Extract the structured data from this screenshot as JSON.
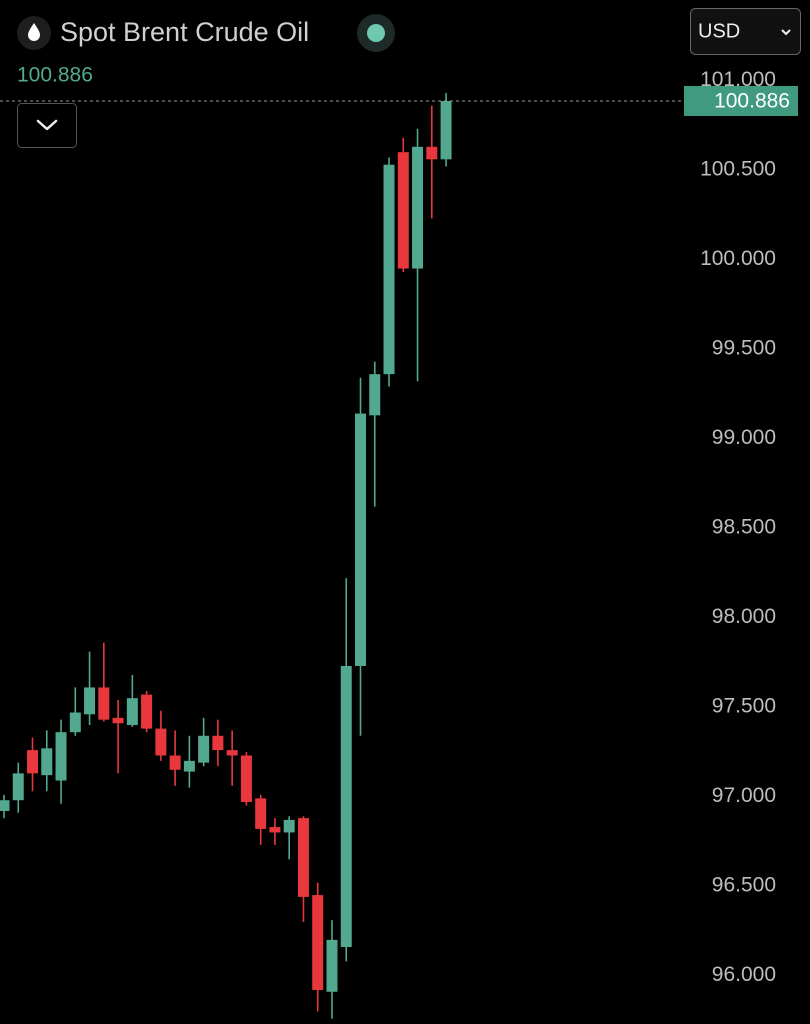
{
  "chart_data": {
    "type": "candlestick",
    "title": "Spot Brent Crude Oil",
    "currency": "USD",
    "last_price": {
      "value": 100.886,
      "label": "100.886"
    },
    "up_color": "#52a98f",
    "down_color": "#e8383d",
    "open": [
      96.92,
      96.98,
      97.26,
      97.12,
      97.09,
      97.36,
      97.46,
      97.61,
      97.44,
      97.4,
      97.57,
      97.38,
      97.23,
      97.14,
      97.19,
      97.34,
      97.26,
      97.23,
      96.99,
      96.83,
      96.8,
      96.88,
      96.45,
      95.91,
      96.16,
      97.73,
      99.13,
      99.36,
      100.6,
      99.95,
      100.63,
      100.56
    ],
    "high": [
      97.01,
      97.19,
      97.33,
      97.37,
      97.43,
      97.61,
      97.81,
      97.86,
      97.54,
      97.68,
      97.59,
      97.48,
      97.37,
      97.34,
      97.44,
      97.43,
      97.37,
      97.25,
      97.01,
      96.88,
      96.89,
      96.89,
      96.52,
      96.31,
      98.22,
      99.34,
      99.43,
      100.57,
      100.68,
      100.73,
      100.86,
      100.93
    ],
    "low": [
      96.88,
      96.91,
      97.03,
      97.03,
      96.96,
      97.34,
      97.4,
      97.42,
      97.13,
      97.39,
      97.36,
      97.2,
      97.06,
      97.05,
      97.17,
      97.17,
      97.06,
      96.95,
      96.73,
      96.73,
      96.65,
      96.3,
      95.8,
      95.76,
      96.08,
      97.34,
      98.62,
      99.29,
      99.93,
      99.32,
      100.23,
      100.52
    ],
    "close": [
      96.98,
      97.13,
      97.13,
      97.27,
      97.36,
      97.47,
      97.61,
      97.43,
      97.41,
      97.55,
      97.38,
      97.23,
      97.15,
      97.2,
      97.34,
      97.26,
      97.23,
      96.97,
      96.82,
      96.8,
      96.87,
      96.44,
      95.92,
      96.2,
      97.73,
      99.14,
      99.36,
      100.53,
      99.95,
      100.63,
      100.56,
      100.886
    ],
    "ylim": [
      95.73,
      101.45
    ],
    "yticks": [
      {
        "value": 96,
        "label": "96.000"
      },
      {
        "value": 96.5,
        "label": "96.500"
      },
      {
        "value": 97,
        "label": "97.000"
      },
      {
        "value": 97.5,
        "label": "97.500"
      },
      {
        "value": 98,
        "label": "98.000"
      },
      {
        "value": 98.5,
        "label": "98.500"
      },
      {
        "value": 99,
        "label": "99.000"
      },
      {
        "value": 99.5,
        "label": "99.500"
      },
      {
        "value": 100,
        "label": "100.000"
      },
      {
        "value": 100.5,
        "label": "100.500"
      },
      {
        "value": 101,
        "label": "101.000"
      }
    ]
  }
}
